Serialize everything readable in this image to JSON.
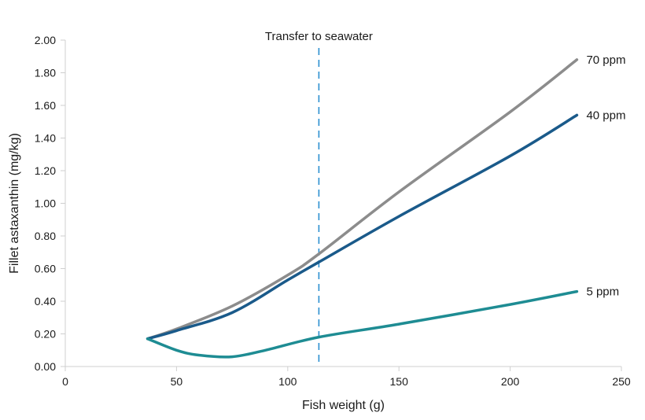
{
  "chart_data": {
    "type": "line",
    "title": "",
    "xlabel": "Fish weight (g)",
    "ylabel": "Fillet astaxanthin (mg/kg)",
    "xlim": [
      0,
      250
    ],
    "ylim": [
      0,
      2.0
    ],
    "x_ticks": [
      "0",
      "50",
      "100",
      "150",
      "200",
      "250"
    ],
    "y_ticks": [
      "0.00",
      "0.20",
      "0.40",
      "0.60",
      "0.80",
      "1.00",
      "1.20",
      "1.40",
      "1.60",
      "1.80",
      "2.00"
    ],
    "grid": false,
    "series": [
      {
        "name": "70 ppm",
        "color": "#8c8c8c",
        "points": [
          [
            37,
            0.17
          ],
          [
            50,
            0.23
          ],
          [
            75,
            0.37
          ],
          [
            100,
            0.56
          ],
          [
            114,
            0.69
          ],
          [
            150,
            1.07
          ],
          [
            200,
            1.56
          ],
          [
            230,
            1.88
          ]
        ]
      },
      {
        "name": "40 ppm",
        "color": "#1a5a8a",
        "points": [
          [
            37,
            0.17
          ],
          [
            50,
            0.22
          ],
          [
            75,
            0.33
          ],
          [
            100,
            0.53
          ],
          [
            114,
            0.64
          ],
          [
            150,
            0.92
          ],
          [
            200,
            1.29
          ],
          [
            230,
            1.54
          ]
        ]
      },
      {
        "name": "5 ppm",
        "color": "#1e8c93",
        "points": [
          [
            37,
            0.17
          ],
          [
            50,
            0.1
          ],
          [
            60,
            0.07
          ],
          [
            75,
            0.06
          ],
          [
            90,
            0.1
          ],
          [
            114,
            0.18
          ],
          [
            150,
            0.26
          ],
          [
            200,
            0.38
          ],
          [
            230,
            0.46
          ]
        ]
      }
    ],
    "annotations": [
      {
        "type": "vline",
        "x": 114,
        "label": "Transfer to seawater",
        "color": "#2b8fd0"
      }
    ]
  }
}
